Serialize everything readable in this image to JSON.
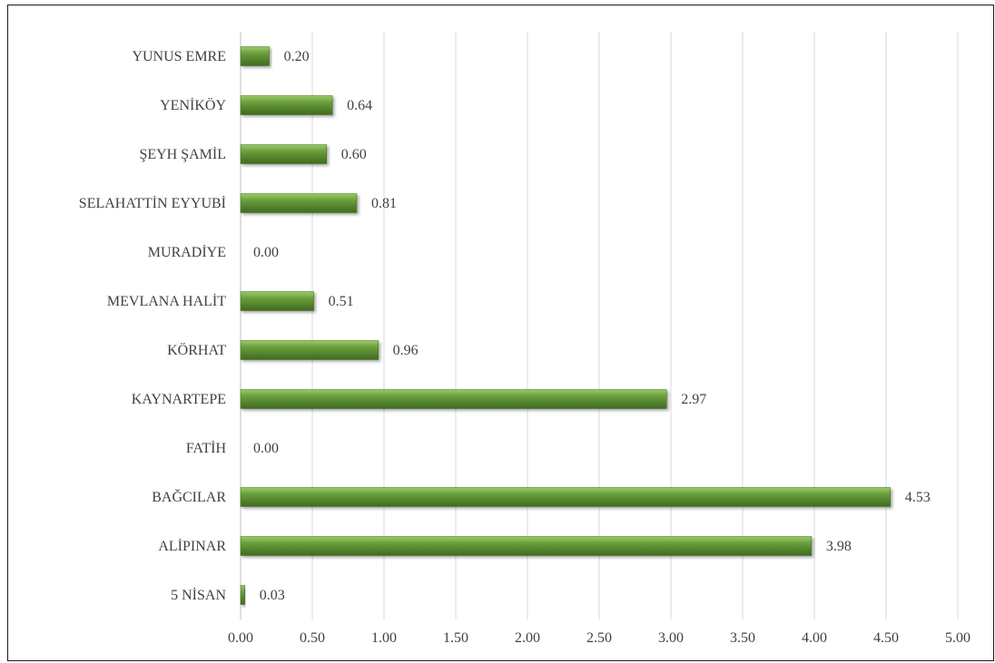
{
  "chart_data": {
    "type": "bar",
    "orientation": "horizontal",
    "title": "",
    "xlabel": "",
    "ylabel": "",
    "categories": [
      "5 NİSAN",
      "ALİPINAR",
      "BAĞCILAR",
      "FATİH",
      "KAYNARTEPE",
      "KÖRHAT",
      "MEVLANA HALİT",
      "MURADİYE",
      "SELAHATTİN EYYUBİ",
      "ŞEYH ŞAMİL",
      "YENİKÖY",
      "YUNUS EMRE"
    ],
    "values": [
      0.03,
      3.98,
      4.53,
      0.0,
      2.97,
      0.96,
      0.51,
      0.0,
      0.81,
      0.6,
      0.64,
      0.2
    ],
    "value_labels": [
      "0.03",
      "3.98",
      "4.53",
      "0.00",
      "2.97",
      "0.96",
      "0.51",
      "0.00",
      "0.81",
      "0.60",
      "0.64",
      "0.20"
    ],
    "xlim": [
      0,
      5
    ],
    "xticks": [
      "0.00",
      "0.50",
      "1.00",
      "1.50",
      "2.00",
      "2.50",
      "3.00",
      "3.50",
      "4.00",
      "4.50",
      "5.00"
    ],
    "grid": "vertical",
    "legend": "none",
    "bar_color": "#6a9e3c",
    "bar_color_light": "#9ccc65",
    "bar_color_dark": "#3f6b1f"
  }
}
